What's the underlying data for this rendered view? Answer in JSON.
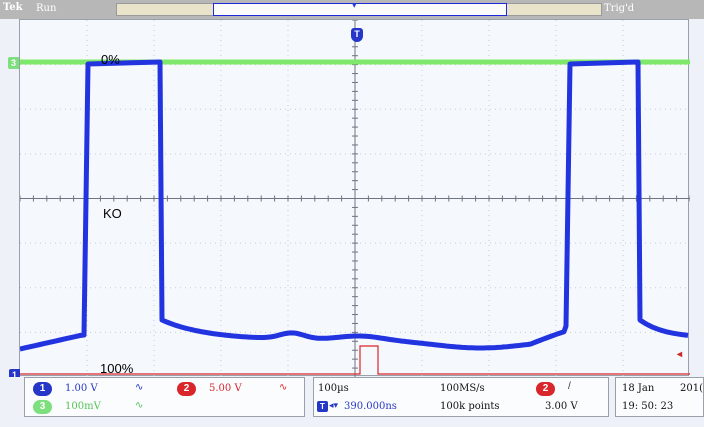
{
  "top_bar": {
    "brand": "Tek",
    "run_state": "Run",
    "trigger_status": "Trig'd"
  },
  "channels": {
    "ch1": {
      "number": "1",
      "scale": "1.00 V",
      "coupling_symbol": "∿",
      "color": "#2536c9"
    },
    "ch2": {
      "number": "2",
      "scale": "5.00 V",
      "coupling_symbol": "∿",
      "color": "#d9262a"
    },
    "ch3": {
      "number": "3",
      "scale": "100mV",
      "coupling_symbol": "∿",
      "color": "#7ddf7d"
    }
  },
  "horizontal": {
    "time_per_div": "100µs",
    "trigger_icon": "T",
    "delay_arrows": "◂▾",
    "delay": "390.000ns",
    "sample_rate": "100MS/s",
    "record_length": "100k points"
  },
  "trigger": {
    "source": "2",
    "slope_symbol": "/",
    "level": "3.00 V",
    "level_marker": "◂"
  },
  "datetime": {
    "date": "18 Jan",
    "year_fragment": "201(",
    "time": "19: 50: 23"
  },
  "annotations": {
    "top_label": "0%",
    "middle_label": "KO",
    "bottom_label": "100%"
  },
  "colors": {
    "ch1_trace": "#2233e0",
    "ch3_trace": "#7ee86a",
    "graticule_background": "#f5f8fd",
    "grid_line": "#c7ccd6",
    "axis_line": "#6e7480"
  },
  "icons": {
    "trigger_position_marker": "T",
    "channel3_ground_marker": "3",
    "channel1_ground_marker": "1"
  }
}
